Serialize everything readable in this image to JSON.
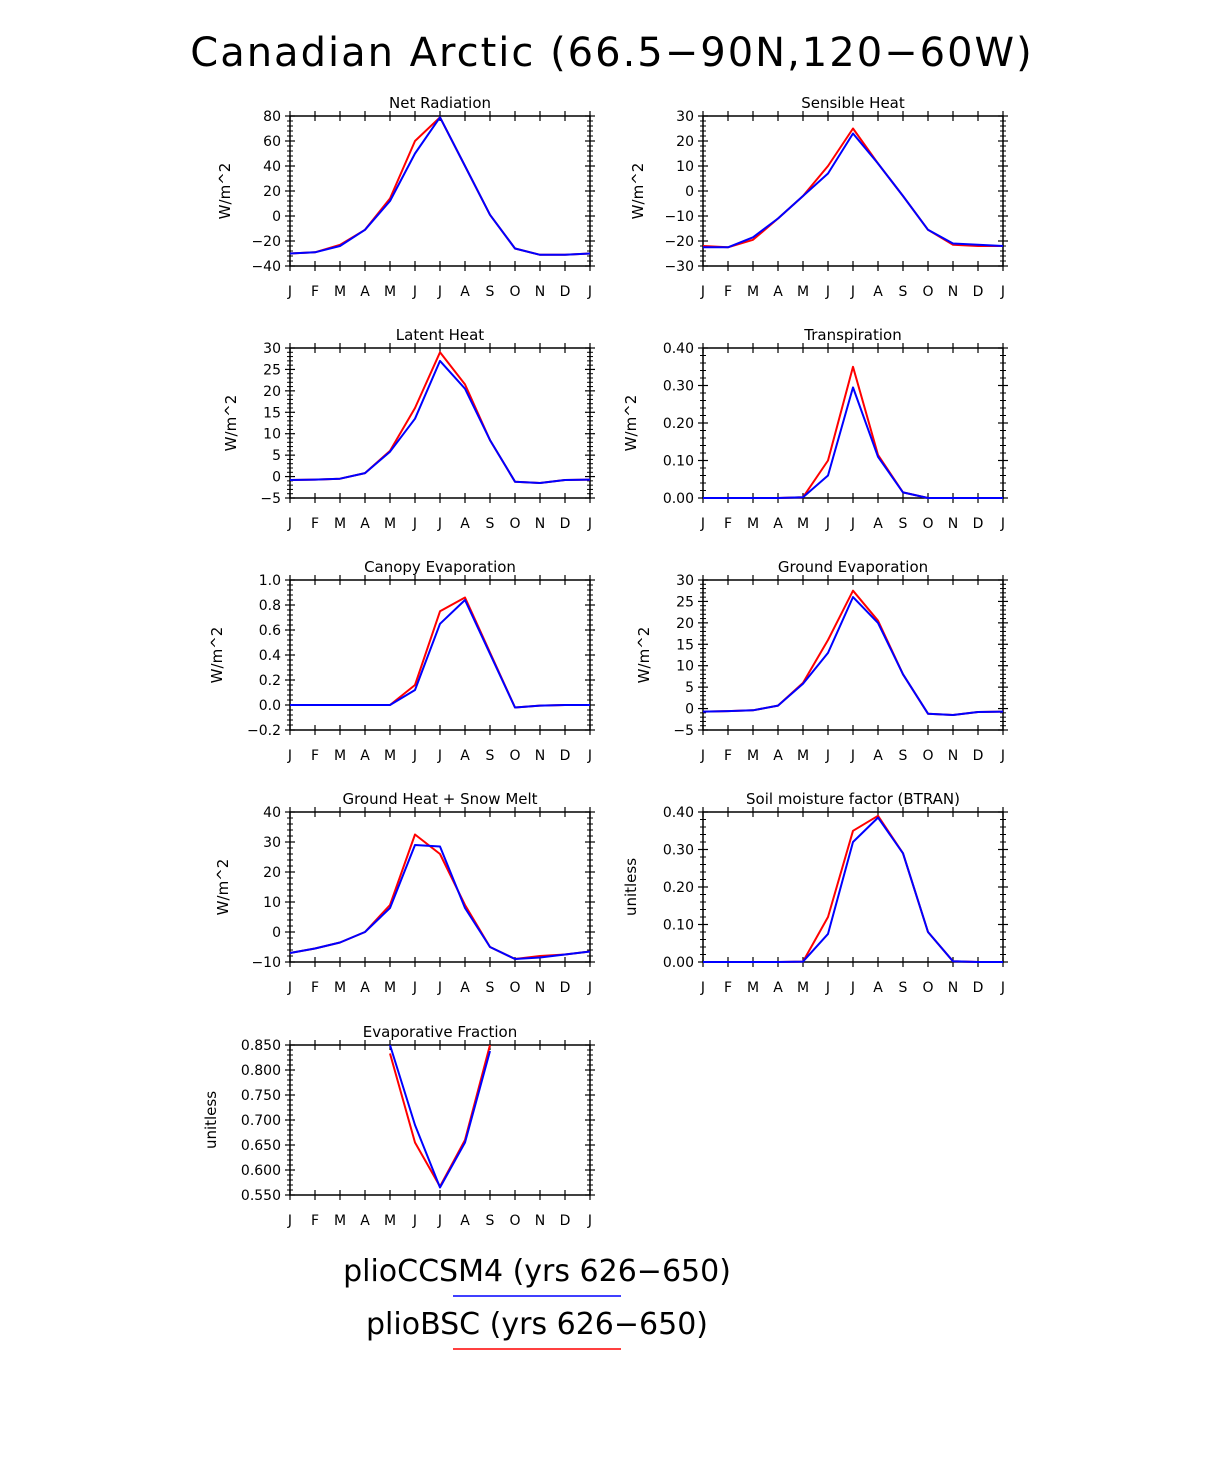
{
  "title": "Canadian Arctic (66.5−90N,120−60W)",
  "legend": [
    {
      "label": "plioCCSM4 (yrs 626−650)",
      "color": "#0000ff"
    },
    {
      "label": "plioBSC (yrs 626−650)",
      "color": "#ff0000"
    }
  ],
  "months": [
    "J",
    "F",
    "M",
    "A",
    "M",
    "J",
    "J",
    "A",
    "S",
    "O",
    "N",
    "D",
    "J"
  ],
  "chart_data": [
    {
      "type": "line",
      "title": "Net Radiation",
      "ylabel": "W/m^2",
      "ylim": [
        -40,
        80
      ],
      "yticks": [
        "80",
        "60",
        "40",
        "20",
        "0",
        "−20",
        "−40"
      ],
      "ytick_values": [
        80,
        60,
        40,
        20,
        0,
        -20,
        -40
      ],
      "series": [
        {
          "color": "#ff0000",
          "values": [
            -30,
            -29,
            -23,
            -11,
            14,
            60,
            79,
            40,
            1,
            -26,
            -31,
            -31,
            -30
          ]
        },
        {
          "color": "#0000ff",
          "values": [
            -30,
            -29,
            -24,
            -11,
            12,
            50,
            79,
            40,
            1,
            -26,
            -31,
            -31,
            -30
          ]
        }
      ]
    },
    {
      "type": "line",
      "title": "Sensible Heat",
      "ylabel": "W/m^2",
      "ylim": [
        -30,
        30
      ],
      "yticks": [
        "30",
        "20",
        "10",
        "0",
        "−10",
        "−20",
        "−30"
      ],
      "ytick_values": [
        30,
        20,
        10,
        0,
        -10,
        -20,
        -30
      ],
      "series": [
        {
          "color": "#ff0000",
          "values": [
            -22,
            -22.5,
            -19.5,
            -11,
            -2,
            10,
            25,
            11,
            -2,
            -15.5,
            -21.5,
            -22,
            -22
          ]
        },
        {
          "color": "#0000ff",
          "values": [
            -22.5,
            -22.5,
            -18.5,
            -11,
            -2,
            7,
            23,
            11,
            -2,
            -15.5,
            -21,
            -21.5,
            -22
          ]
        }
      ]
    },
    {
      "type": "line",
      "title": "Latent Heat",
      "ylabel": "W/m^2",
      "ylim": [
        -5,
        30
      ],
      "yticks": [
        "30",
        "25",
        "20",
        "15",
        "10",
        "5",
        "0",
        "−5"
      ],
      "ytick_values": [
        30,
        25,
        20,
        15,
        10,
        5,
        0,
        -5
      ],
      "series": [
        {
          "color": "#ff0000",
          "values": [
            -0.8,
            -0.7,
            -0.5,
            0.8,
            6,
            16,
            29,
            21.5,
            8.5,
            -1.2,
            -1.5,
            -0.8,
            -0.7
          ]
        },
        {
          "color": "#0000ff",
          "values": [
            -0.8,
            -0.7,
            -0.5,
            0.8,
            5.8,
            13.5,
            27,
            20.5,
            8.5,
            -1.2,
            -1.5,
            -0.8,
            -0.7
          ]
        }
      ]
    },
    {
      "type": "line",
      "title": "Transpiration",
      "ylabel": "W/m^2",
      "ylim": [
        0,
        0.4
      ],
      "yticks": [
        "0.40",
        "0.30",
        "0.20",
        "0.10",
        "0.00"
      ],
      "ytick_values": [
        0.4,
        0.3,
        0.2,
        0.1,
        0
      ],
      "series": [
        {
          "color": "#ff0000",
          "values": [
            0,
            0,
            0,
            0,
            0.002,
            0.1,
            0.35,
            0.115,
            0.015,
            0,
            0,
            0,
            0
          ]
        },
        {
          "color": "#0000ff",
          "values": [
            0,
            0,
            0,
            0,
            0.002,
            0.06,
            0.295,
            0.11,
            0.015,
            0,
            0,
            0,
            0
          ]
        }
      ]
    },
    {
      "type": "line",
      "title": "Canopy Evaporation",
      "ylabel": "W/m^2",
      "ylim": [
        -0.2,
        1.0
      ],
      "yticks": [
        "1.0",
        "0.8",
        "0.6",
        "0.4",
        "0.2",
        "0.0",
        "−0.2"
      ],
      "ytick_values": [
        1.0,
        0.8,
        0.6,
        0.4,
        0.2,
        0,
        -0.2
      ],
      "series": [
        {
          "color": "#ff0000",
          "values": [
            0,
            0,
            0,
            0,
            0,
            0.16,
            0.75,
            0.86,
            0.42,
            -0.02,
            -0.005,
            0,
            0
          ]
        },
        {
          "color": "#0000ff",
          "values": [
            0,
            0,
            0,
            0,
            0,
            0.12,
            0.65,
            0.84,
            0.41,
            -0.02,
            -0.005,
            0,
            0
          ]
        }
      ]
    },
    {
      "type": "line",
      "title": "Ground Evaporation",
      "ylabel": "W/m^2",
      "ylim": [
        -5,
        30
      ],
      "yticks": [
        "30",
        "25",
        "20",
        "15",
        "10",
        "5",
        "0",
        "−5"
      ],
      "ytick_values": [
        30,
        25,
        20,
        15,
        10,
        5,
        0,
        -5
      ],
      "series": [
        {
          "color": "#ff0000",
          "values": [
            -0.7,
            -0.6,
            -0.4,
            0.7,
            6,
            16,
            27.5,
            20.5,
            8,
            -1.2,
            -1.5,
            -0.8,
            -0.7
          ]
        },
        {
          "color": "#0000ff",
          "values": [
            -0.7,
            -0.6,
            -0.4,
            0.7,
            5.8,
            13,
            26,
            20,
            8,
            -1.2,
            -1.5,
            -0.8,
            -0.7
          ]
        }
      ]
    },
    {
      "type": "line",
      "title": "Ground Heat + Snow Melt",
      "ylabel": "W/m^2",
      "ylim": [
        -10,
        40
      ],
      "yticks": [
        "40",
        "30",
        "20",
        "10",
        "0",
        "−10"
      ],
      "ytick_values": [
        40,
        30,
        20,
        10,
        0,
        -10
      ],
      "series": [
        {
          "color": "#ff0000",
          "values": [
            -7,
            -5.5,
            -3.5,
            0,
            9,
            32.5,
            26,
            9,
            -5,
            -9,
            -8,
            -7.5,
            -6.5
          ]
        },
        {
          "color": "#0000ff",
          "values": [
            -7,
            -5.5,
            -3.5,
            0,
            8,
            29,
            28.5,
            8,
            -5,
            -9,
            -8.5,
            -7.5,
            -6.5
          ]
        }
      ]
    },
    {
      "type": "line",
      "title": "Soil moisture factor (BTRAN)",
      "ylabel": "unitless",
      "ylim": [
        0,
        0.4
      ],
      "yticks": [
        "0.40",
        "0.30",
        "0.20",
        "0.10",
        "0.00"
      ],
      "ytick_values": [
        0.4,
        0.3,
        0.2,
        0.1,
        0
      ],
      "series": [
        {
          "color": "#ff0000",
          "values": [
            0,
            0,
            0,
            0,
            0.001,
            0.12,
            0.35,
            0.39,
            0.29,
            0.08,
            0.002,
            0,
            0
          ]
        },
        {
          "color": "#0000ff",
          "values": [
            0,
            0,
            0,
            0,
            0.001,
            0.075,
            0.32,
            0.385,
            0.29,
            0.08,
            0.002,
            0,
            0
          ]
        }
      ]
    },
    {
      "type": "line",
      "title": "Evaporative Fraction",
      "ylabel": "unitless",
      "ylim": [
        0.55,
        0.85
      ],
      "yticks": [
        "0.850",
        "0.800",
        "0.750",
        "0.700",
        "0.650",
        "0.600",
        "0.550"
      ],
      "ytick_values": [
        0.85,
        0.8,
        0.75,
        0.7,
        0.65,
        0.6,
        0.55
      ],
      "series": [
        {
          "color": "#ff0000",
          "values": [
            null,
            null,
            null,
            null,
            0.833,
            0.655,
            0.567,
            0.66,
            0.85,
            null,
            null,
            null,
            null
          ]
        },
        {
          "color": "#0000ff",
          "values": [
            null,
            null,
            null,
            null,
            0.85,
            0.69,
            0.565,
            0.655,
            0.838,
            null,
            null,
            null,
            null
          ]
        }
      ]
    }
  ]
}
